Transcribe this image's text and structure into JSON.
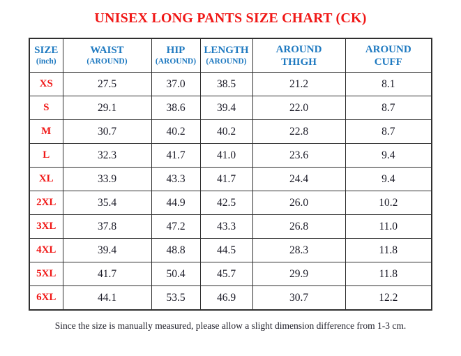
{
  "title": "UNISEX LONG PANTS SIZE CHART (CK)",
  "table": {
    "columns": [
      {
        "label": "SIZE",
        "sub": "(inch)"
      },
      {
        "label": "WAIST",
        "sub": "(AROUND)"
      },
      {
        "label": "HIP",
        "sub": "(AROUND)"
      },
      {
        "label": "LENGTH",
        "sub": "(AROUND)"
      },
      {
        "label": "AROUND",
        "sub": "THIGH"
      },
      {
        "label": "AROUND",
        "sub": "CUFF"
      }
    ],
    "rows": [
      {
        "size": "XS",
        "values": [
          "27.5",
          "37.0",
          "38.5",
          "21.2",
          "8.1"
        ]
      },
      {
        "size": "S",
        "values": [
          "29.1",
          "38.6",
          "39.4",
          "22.0",
          "8.7"
        ]
      },
      {
        "size": "M",
        "values": [
          "30.7",
          "40.2",
          "40.2",
          "22.8",
          "8.7"
        ]
      },
      {
        "size": "L",
        "values": [
          "32.3",
          "41.7",
          "41.0",
          "23.6",
          "9.4"
        ]
      },
      {
        "size": "XL",
        "values": [
          "33.9",
          "43.3",
          "41.7",
          "24.4",
          "9.4"
        ]
      },
      {
        "size": "2XL",
        "values": [
          "35.4",
          "44.9",
          "42.5",
          "26.0",
          "10.2"
        ]
      },
      {
        "size": "3XL",
        "values": [
          "37.8",
          "47.2",
          "43.3",
          "26.8",
          "11.0"
        ]
      },
      {
        "size": "4XL",
        "values": [
          "39.4",
          "48.8",
          "44.5",
          "28.3",
          "11.8"
        ]
      },
      {
        "size": "5XL",
        "values": [
          "41.7",
          "50.4",
          "45.7",
          "29.9",
          "11.8"
        ]
      },
      {
        "size": "6XL",
        "values": [
          "44.1",
          "53.5",
          "46.9",
          "30.7",
          "12.2"
        ]
      }
    ]
  },
  "footnote": "Since the size is manually measured, please allow a slight dimension difference from 1-3 cm.",
  "colors": {
    "title_red": "#f01716",
    "header_blue": "#1e79c0",
    "value_ink": "#1b1b27",
    "border": "#2f2f2f"
  }
}
